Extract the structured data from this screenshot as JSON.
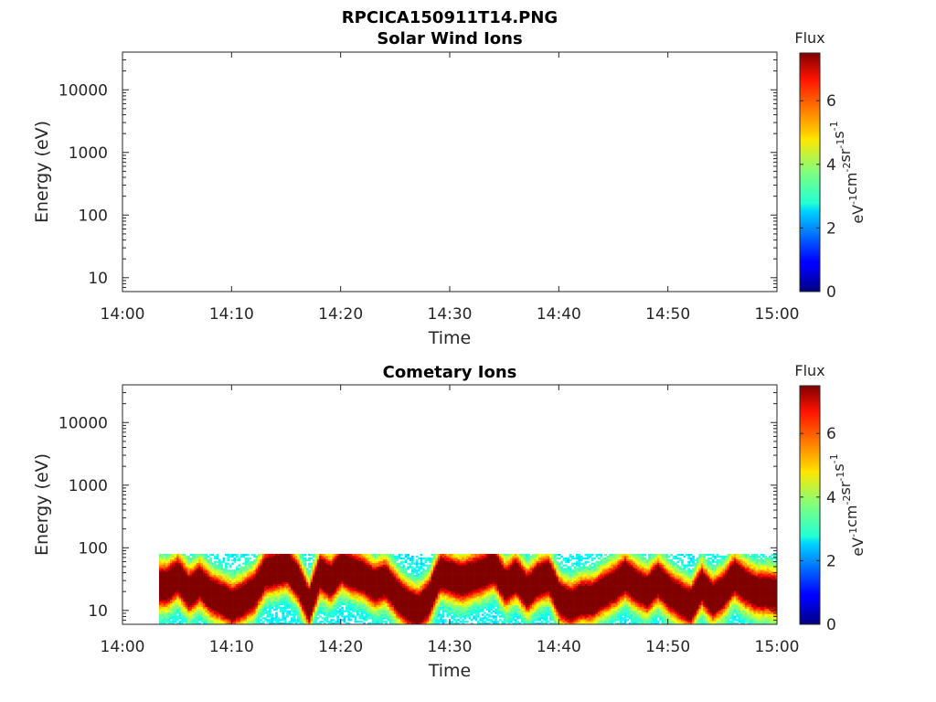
{
  "figure": {
    "suptitle": "RPCICA150911T14.PNG"
  },
  "colorbar": {
    "title": "Flux",
    "label_base": [
      "eV",
      "-1",
      "cm",
      "-2",
      "sr",
      "-1",
      "s",
      "-1"
    ],
    "ticks": [
      "0",
      "2",
      "4",
      "6"
    ],
    "range": [
      0,
      7.5
    ],
    "colormap": "jet"
  },
  "chart_data": [
    {
      "type": "heatmap",
      "title": "Solar Wind Ions",
      "xlabel": "Time",
      "ylabel": "Energy (eV)",
      "x_ticks": [
        "14:00",
        "14:10",
        "14:20",
        "14:30",
        "14:40",
        "14:50",
        "15:00"
      ],
      "y_ticks": [
        "10",
        "100",
        "1000",
        "10000"
      ],
      "y_scale": "log",
      "xlim": [
        "14:00",
        "15:00"
      ],
      "ylim": [
        6,
        40000
      ],
      "data": []
    },
    {
      "type": "heatmap",
      "title": "Cometary Ions",
      "xlabel": "Time",
      "ylabel": "Energy (eV)",
      "x_ticks": [
        "14:00",
        "14:10",
        "14:20",
        "14:30",
        "14:40",
        "14:50",
        "15:00"
      ],
      "y_ticks": [
        "10",
        "100",
        "1000",
        "10000"
      ],
      "y_scale": "log",
      "xlim": [
        "14:00",
        "15:00"
      ],
      "ylim": [
        6,
        40000
      ],
      "band_top_eV": 80,
      "data_start": "14:03",
      "data_end": "15:00",
      "peak_energy_eV": [
        [
          "14:04",
          25
        ],
        [
          "14:05",
          35
        ],
        [
          "14:06",
          20
        ],
        [
          "14:07",
          28
        ],
        [
          "14:08",
          18
        ],
        [
          "14:09",
          15
        ],
        [
          "14:10",
          12
        ],
        [
          "14:11",
          15
        ],
        [
          "14:12",
          20
        ],
        [
          "14:13",
          40
        ],
        [
          "14:14",
          45
        ],
        [
          "14:15",
          50
        ],
        [
          "14:16",
          30
        ],
        [
          "14:17",
          12
        ],
        [
          "14:18",
          40
        ],
        [
          "14:19",
          30
        ],
        [
          "14:20",
          50
        ],
        [
          "14:21",
          40
        ],
        [
          "14:22",
          35
        ],
        [
          "14:23",
          25
        ],
        [
          "14:24",
          30
        ],
        [
          "14:25",
          18
        ],
        [
          "14:26",
          12
        ],
        [
          "14:27",
          10
        ],
        [
          "14:28",
          15
        ],
        [
          "14:29",
          40
        ],
        [
          "14:30",
          35
        ],
        [
          "14:31",
          30
        ],
        [
          "14:32",
          35
        ],
        [
          "14:33",
          40
        ],
        [
          "14:34",
          50
        ],
        [
          "14:35",
          25
        ],
        [
          "14:36",
          35
        ],
        [
          "14:37",
          20
        ],
        [
          "14:38",
          30
        ],
        [
          "14:39",
          35
        ],
        [
          "14:40",
          15
        ],
        [
          "14:41",
          12
        ],
        [
          "14:42",
          15
        ],
        [
          "14:43",
          15
        ],
        [
          "14:44",
          20
        ],
        [
          "14:45",
          25
        ],
        [
          "14:46",
          35
        ],
        [
          "14:47",
          25
        ],
        [
          "14:48",
          20
        ],
        [
          "14:49",
          30
        ],
        [
          "14:50",
          20
        ],
        [
          "14:51",
          15
        ],
        [
          "14:52",
          12
        ],
        [
          "14:53",
          25
        ],
        [
          "14:54",
          15
        ],
        [
          "14:55",
          20
        ],
        [
          "14:56",
          35
        ],
        [
          "14:57",
          25
        ],
        [
          "14:58",
          20
        ],
        [
          "14:59",
          20
        ],
        [
          "15:00",
          18
        ]
      ]
    }
  ]
}
